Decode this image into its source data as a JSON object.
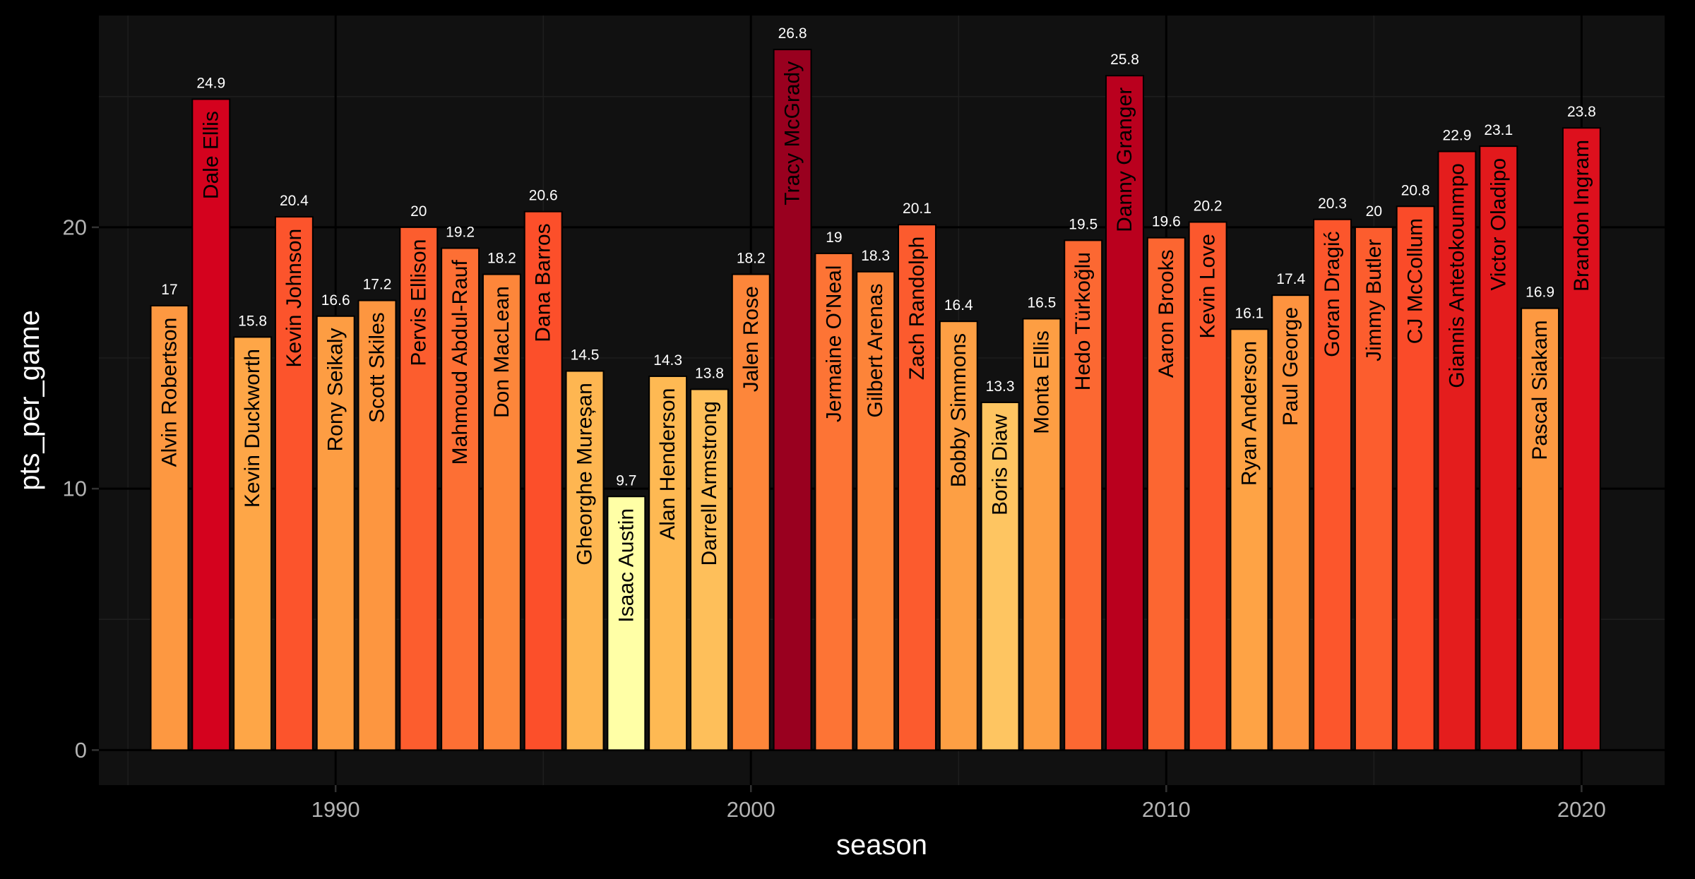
{
  "chart_data": {
    "type": "bar",
    "title": "",
    "xlabel": "season",
    "ylabel": "pts_per_game",
    "xlim": [
      1984.3,
      2022.0
    ],
    "ylim": [
      -1.34,
      28.1
    ],
    "x_ticks": [
      1990,
      2000,
      2010,
      2020
    ],
    "x_tick_labels": [
      "1990",
      "2000",
      "2010",
      "2020"
    ],
    "y_ticks": [
      0,
      10,
      20
    ],
    "y_tick_labels": [
      "0",
      "10",
      "20"
    ],
    "grid": true,
    "legend": "none",
    "colors": {
      "background": "#000000",
      "panel": "#111111",
      "grid_major": "#000000",
      "grid_minor": "#1e1e1e",
      "bar_outline": "#000000",
      "scale_low": "#ffffa6",
      "scale_high": "#99001f"
    },
    "bars": [
      {
        "season": 1986,
        "player": "Alvin Robertson",
        "value": 17,
        "label": "17"
      },
      {
        "season": 1987,
        "player": "Dale Ellis",
        "value": 24.9,
        "label": "24.9"
      },
      {
        "season": 1988,
        "player": "Kevin Duckworth",
        "value": 15.8,
        "label": "15.8"
      },
      {
        "season": 1989,
        "player": "Kevin Johnson",
        "value": 20.4,
        "label": "20.4"
      },
      {
        "season": 1990,
        "player": "Rony Seikaly",
        "value": 16.6,
        "label": "16.6"
      },
      {
        "season": 1991,
        "player": "Scott Skiles",
        "value": 17.2,
        "label": "17.2"
      },
      {
        "season": 1992,
        "player": "Pervis Ellison",
        "value": 20,
        "label": "20"
      },
      {
        "season": 1993,
        "player": "Mahmoud Abdul-Rauf",
        "value": 19.2,
        "label": "19.2"
      },
      {
        "season": 1994,
        "player": "Don MacLean",
        "value": 18.2,
        "label": "18.2"
      },
      {
        "season": 1995,
        "player": "Dana Barros",
        "value": 20.6,
        "label": "20.6"
      },
      {
        "season": 1996,
        "player": "Gheorghe Mureșan",
        "value": 14.5,
        "label": "14.5"
      },
      {
        "season": 1997,
        "player": "Isaac Austin",
        "value": 9.7,
        "label": "9.7"
      },
      {
        "season": 1998,
        "player": "Alan Henderson",
        "value": 14.3,
        "label": "14.3"
      },
      {
        "season": 1999,
        "player": "Darrell Armstrong",
        "value": 13.8,
        "label": "13.8"
      },
      {
        "season": 2000,
        "player": "Jalen Rose",
        "value": 18.2,
        "label": "18.2"
      },
      {
        "season": 2001,
        "player": "Tracy McGrady",
        "value": 26.8,
        "label": "26.8"
      },
      {
        "season": 2002,
        "player": "Jermaine O'Neal",
        "value": 19,
        "label": "19"
      },
      {
        "season": 2003,
        "player": "Gilbert Arenas",
        "value": 18.3,
        "label": "18.3"
      },
      {
        "season": 2004,
        "player": "Zach Randolph",
        "value": 20.1,
        "label": "20.1"
      },
      {
        "season": 2005,
        "player": "Bobby Simmons",
        "value": 16.4,
        "label": "16.4"
      },
      {
        "season": 2006,
        "player": "Boris Diaw",
        "value": 13.3,
        "label": "13.3"
      },
      {
        "season": 2007,
        "player": "Monta Ellis",
        "value": 16.5,
        "label": "16.5"
      },
      {
        "season": 2008,
        "player": "Hedo Türkoğlu",
        "value": 19.5,
        "label": "19.5"
      },
      {
        "season": 2009,
        "player": "Danny Granger",
        "value": 25.8,
        "label": "25.8"
      },
      {
        "season": 2010,
        "player": "Aaron Brooks",
        "value": 19.6,
        "label": "19.6"
      },
      {
        "season": 2011,
        "player": "Kevin Love",
        "value": 20.2,
        "label": "20.2"
      },
      {
        "season": 2012,
        "player": "Ryan Anderson",
        "value": 16.1,
        "label": "16.1"
      },
      {
        "season": 2013,
        "player": "Paul George",
        "value": 17.4,
        "label": "17.4"
      },
      {
        "season": 2014,
        "player": "Goran Dragić",
        "value": 20.3,
        "label": "20.3"
      },
      {
        "season": 2015,
        "player": "Jimmy Butler",
        "value": 20,
        "label": "20"
      },
      {
        "season": 2016,
        "player": "CJ McCollum",
        "value": 20.8,
        "label": "20.8"
      },
      {
        "season": 2017,
        "player": "Giannis Antetokounmpo",
        "value": 22.9,
        "label": "22.9"
      },
      {
        "season": 2018,
        "player": "Victor Oladipo",
        "value": 23.1,
        "label": "23.1"
      },
      {
        "season": 2019,
        "player": "Pascal Siakam",
        "value": 16.9,
        "label": "16.9"
      },
      {
        "season": 2020,
        "player": "Brandon Ingram",
        "value": 23.8,
        "label": "23.8"
      }
    ]
  }
}
